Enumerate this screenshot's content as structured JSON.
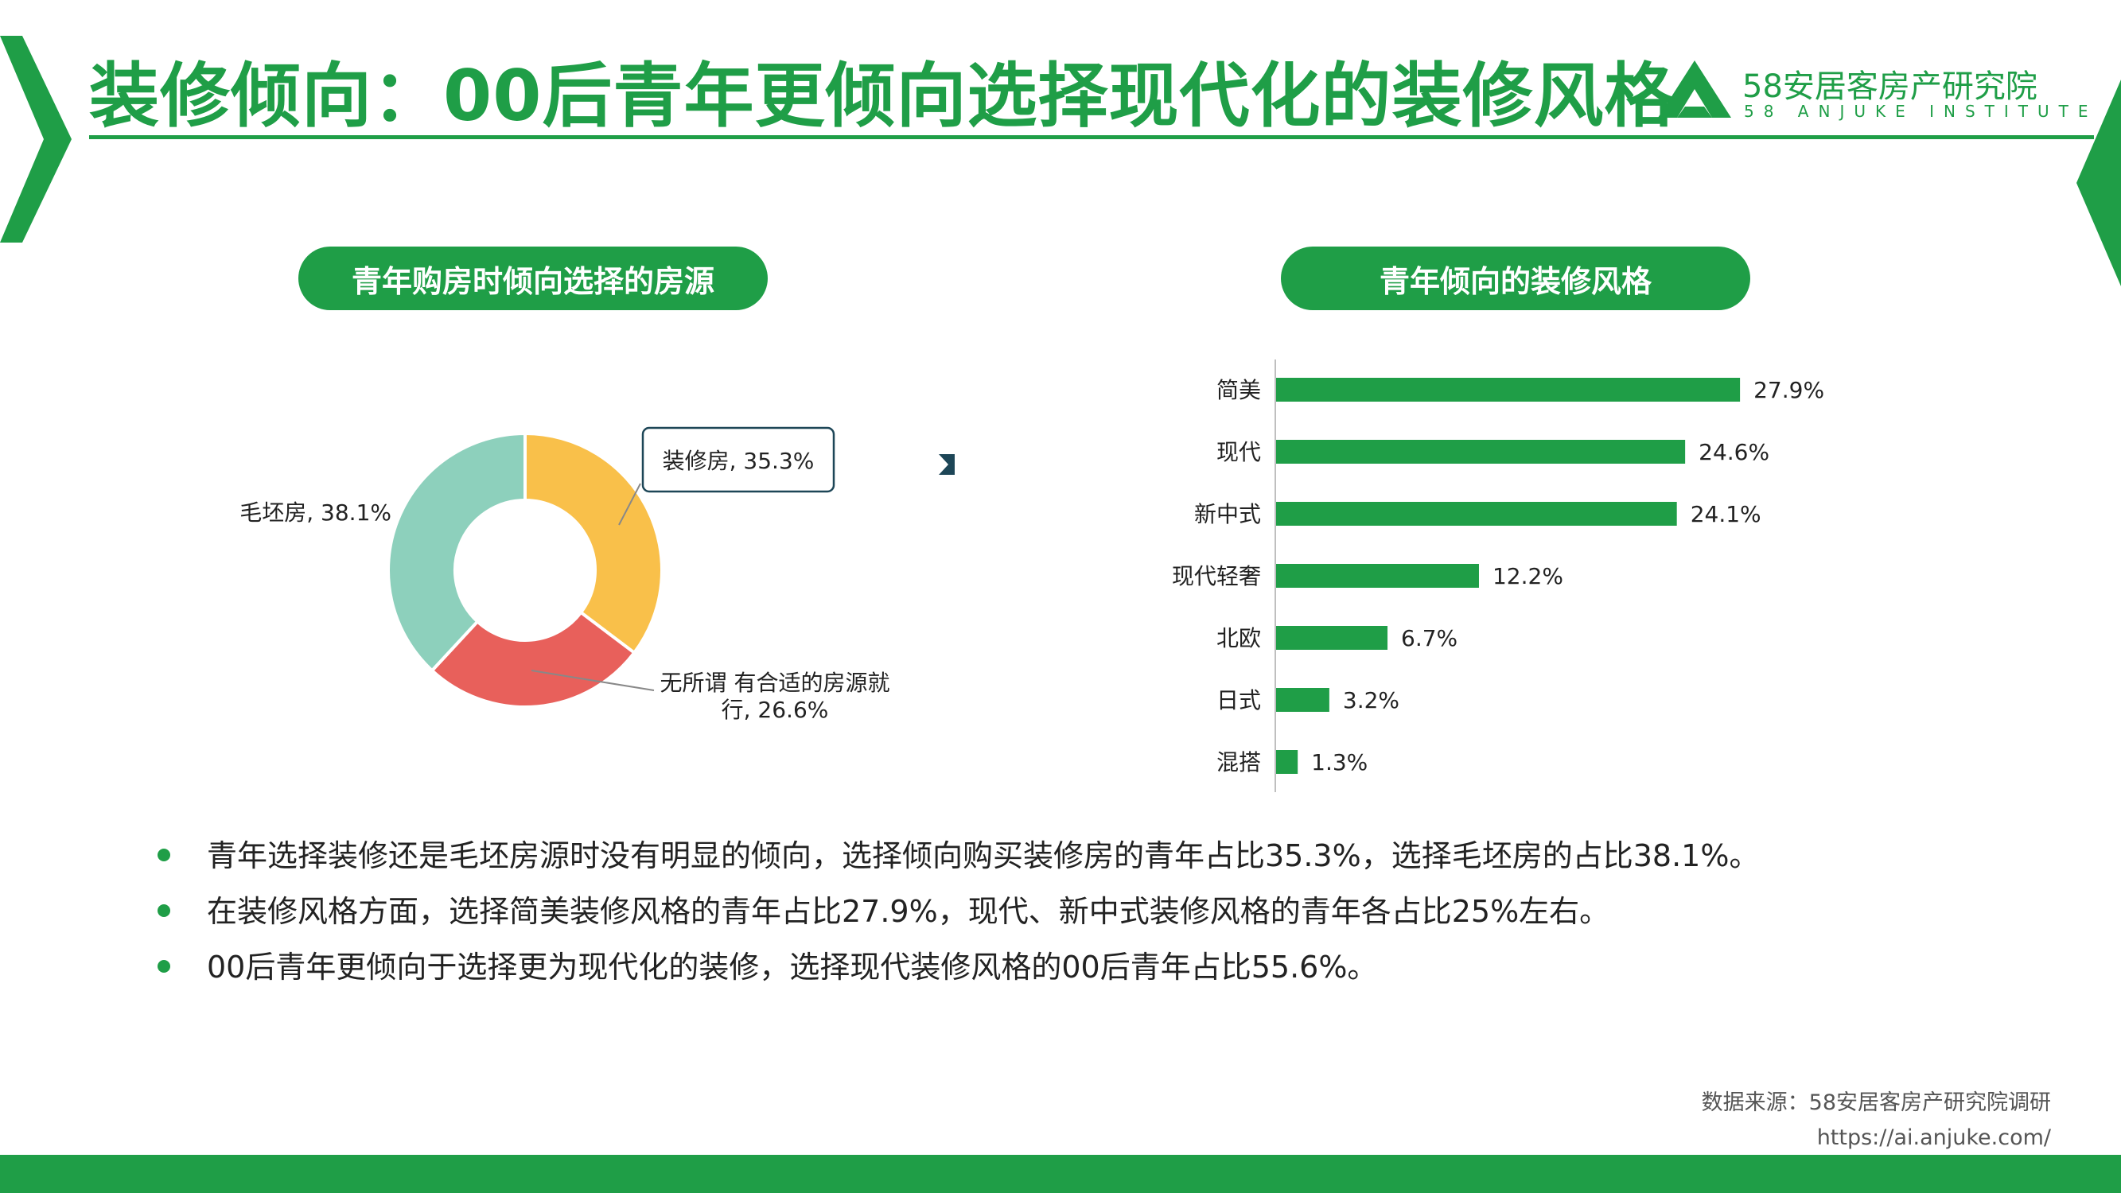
{
  "header": {
    "title": "装修倾向：00后青年更倾向选择现代化的装修风格",
    "logo_name": "58安居客房产研究院",
    "logo_sub": "58 ANJUKE INSTITUTE"
  },
  "colors": {
    "brand_green": "#1f9e47",
    "donut_renovated": "#f9c04a",
    "donut_indifferent": "#e8605b",
    "donut_unfinished": "#8dd0bc",
    "arrow": "#1d4657"
  },
  "left_panel": {
    "heading": "青年购房时倾向选择的房源"
  },
  "right_panel": {
    "heading": "青年倾向的装修风格"
  },
  "chart_data": [
    {
      "type": "pie",
      "title": "青年购房时倾向选择的房源",
      "labels": [
        "装修房",
        "无所谓 有合适的房源就行",
        "毛坯房"
      ],
      "values": [
        35.3,
        26.6,
        38.1
      ],
      "data_labels": [
        "装修房, 35.3%",
        "无所谓 有合适的房源就行, 26.6%",
        "毛坯房, 38.1%"
      ],
      "label_indifferent_line1": "无所谓 有合适的房源就",
      "label_indifferent_line2": "行, 26.6%",
      "unit": "%"
    },
    {
      "type": "bar",
      "orientation": "horizontal",
      "title": "青年倾向的装修风格",
      "categories": [
        "简美",
        "现代",
        "新中式",
        "现代轻奢",
        "北欧",
        "日式",
        "混搭"
      ],
      "values": [
        27.9,
        24.6,
        24.1,
        12.2,
        6.7,
        3.2,
        1.3
      ],
      "value_labels": [
        "27.9%",
        "24.6%",
        "24.1%",
        "12.2%",
        "6.7%",
        "3.2%",
        "1.3%"
      ],
      "unit": "%"
    }
  ],
  "bullets": [
    "青年选择装修还是毛坯房源时没有明显的倾向，选择倾向购买装修房的青年占比35.3%，选择毛坯房的占比38.1%。",
    "在装修风格方面，选择简美装修风格的青年占比27.9%，现代、新中式装修风格的青年各占比25%左右。",
    "00后青年更倾向于选择更为现代化的装修，选择现代装修风格的00后青年占比55.6%。"
  ],
  "source": {
    "text": "数据来源：58安居客房产研究院调研",
    "url": "https://ai.anjuke.com/"
  }
}
